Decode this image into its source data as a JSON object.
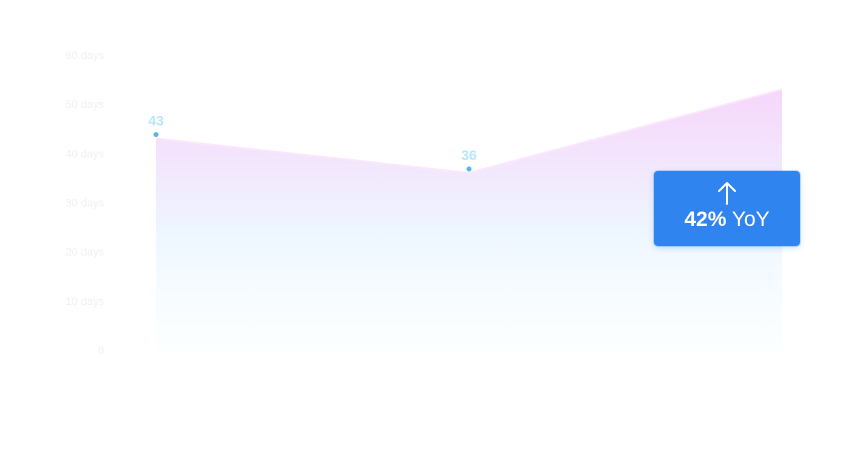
{
  "chart_data": {
    "type": "area",
    "x": [
      "",
      "",
      ""
    ],
    "values": [
      43,
      36,
      53
    ],
    "value_labels": [
      "43",
      "36",
      ""
    ],
    "y_ticks": [
      {
        "value": 0,
        "label": "0"
      },
      {
        "value": 10,
        "label": "10 days"
      },
      {
        "value": 20,
        "label": "20 days"
      },
      {
        "value": 30,
        "label": "30 days"
      },
      {
        "value": 40,
        "label": "40 days"
      },
      {
        "value": 50,
        "label": "50 days"
      },
      {
        "value": 60,
        "label": "60 days"
      }
    ],
    "ylim": [
      0,
      60
    ],
    "grid": false,
    "title": "",
    "xlabel": "",
    "ylabel": "",
    "colors": {
      "area_top": "#f6d6fa",
      "area_bottom": "#f5fdff",
      "line": "#fbe7fb",
      "point": "#5ab4ec",
      "data_label": "#b7e6fa",
      "tick_label": "#eef0f3"
    }
  },
  "yoy_badge": {
    "icon": "arrow-up-icon",
    "percent": "42%",
    "suffix": "YoY",
    "color": "#2f84f0"
  }
}
